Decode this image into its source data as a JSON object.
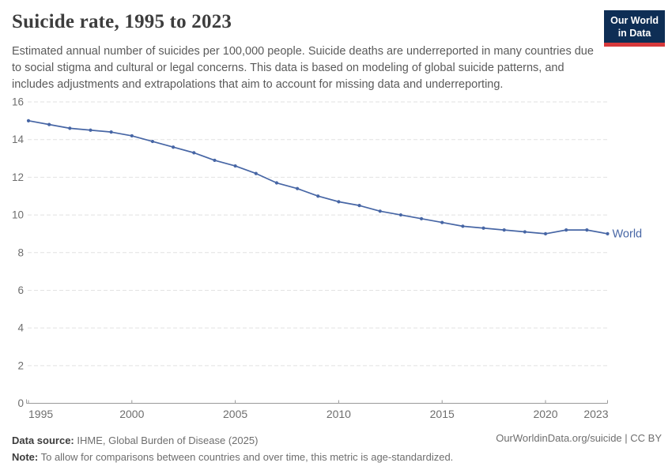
{
  "header": {
    "title": "Suicide rate, 1995 to 2023",
    "subtitle": "Estimated annual number of suicides per 100,000 people. Suicide deaths are underreported in many countries due to social stigma and cultural or legal concerns. This data is based on modeling of global suicide patterns, and includes adjustments and extrapolations that aim to account for missing data and underreporting.",
    "logo_line1": "Our World",
    "logo_line2": "in Data"
  },
  "footer": {
    "source_label": "Data source:",
    "source_value": " IHME, Global Burden of Disease (2025)",
    "note_label": "Note:",
    "note_value": " To allow for comparisons between countries and over time, this metric is age-standardized.",
    "citation": "OurWorldinData.org/suicide | CC BY"
  },
  "colors": {
    "series": "#4766a5",
    "grid": "#e2e2e2",
    "axis": "#9a9a9a",
    "tick_text": "#6e6e6e",
    "logo_bg": "#0e2e55",
    "logo_red": "#d7393b"
  },
  "chart_data": {
    "type": "line",
    "title": "Suicide rate, 1995 to 2023",
    "xlabel": "",
    "ylabel": "",
    "grid": "horizontal dashed",
    "legend": "end-of-line label",
    "xlim": [
      1995,
      2023
    ],
    "ylim": [
      0,
      16
    ],
    "xticks": [
      1995,
      2000,
      2005,
      2010,
      2015,
      2020,
      2023
    ],
    "yticks": [
      0,
      2,
      4,
      6,
      8,
      10,
      12,
      14,
      16
    ],
    "x": [
      1995,
      1996,
      1997,
      1998,
      1999,
      2000,
      2001,
      2002,
      2003,
      2004,
      2005,
      2006,
      2007,
      2008,
      2009,
      2010,
      2011,
      2012,
      2013,
      2014,
      2015,
      2016,
      2017,
      2018,
      2019,
      2020,
      2021,
      2022,
      2023
    ],
    "series": [
      {
        "name": "World",
        "color": "#4766a5",
        "values": [
          15.0,
          14.8,
          14.6,
          14.5,
          14.4,
          14.2,
          13.9,
          13.6,
          13.3,
          12.9,
          12.6,
          12.2,
          11.7,
          11.4,
          11.0,
          10.7,
          10.5,
          10.2,
          10.0,
          9.8,
          9.6,
          9.4,
          9.3,
          9.2,
          9.1,
          9.0,
          9.2,
          9.2,
          9.0
        ]
      }
    ]
  }
}
